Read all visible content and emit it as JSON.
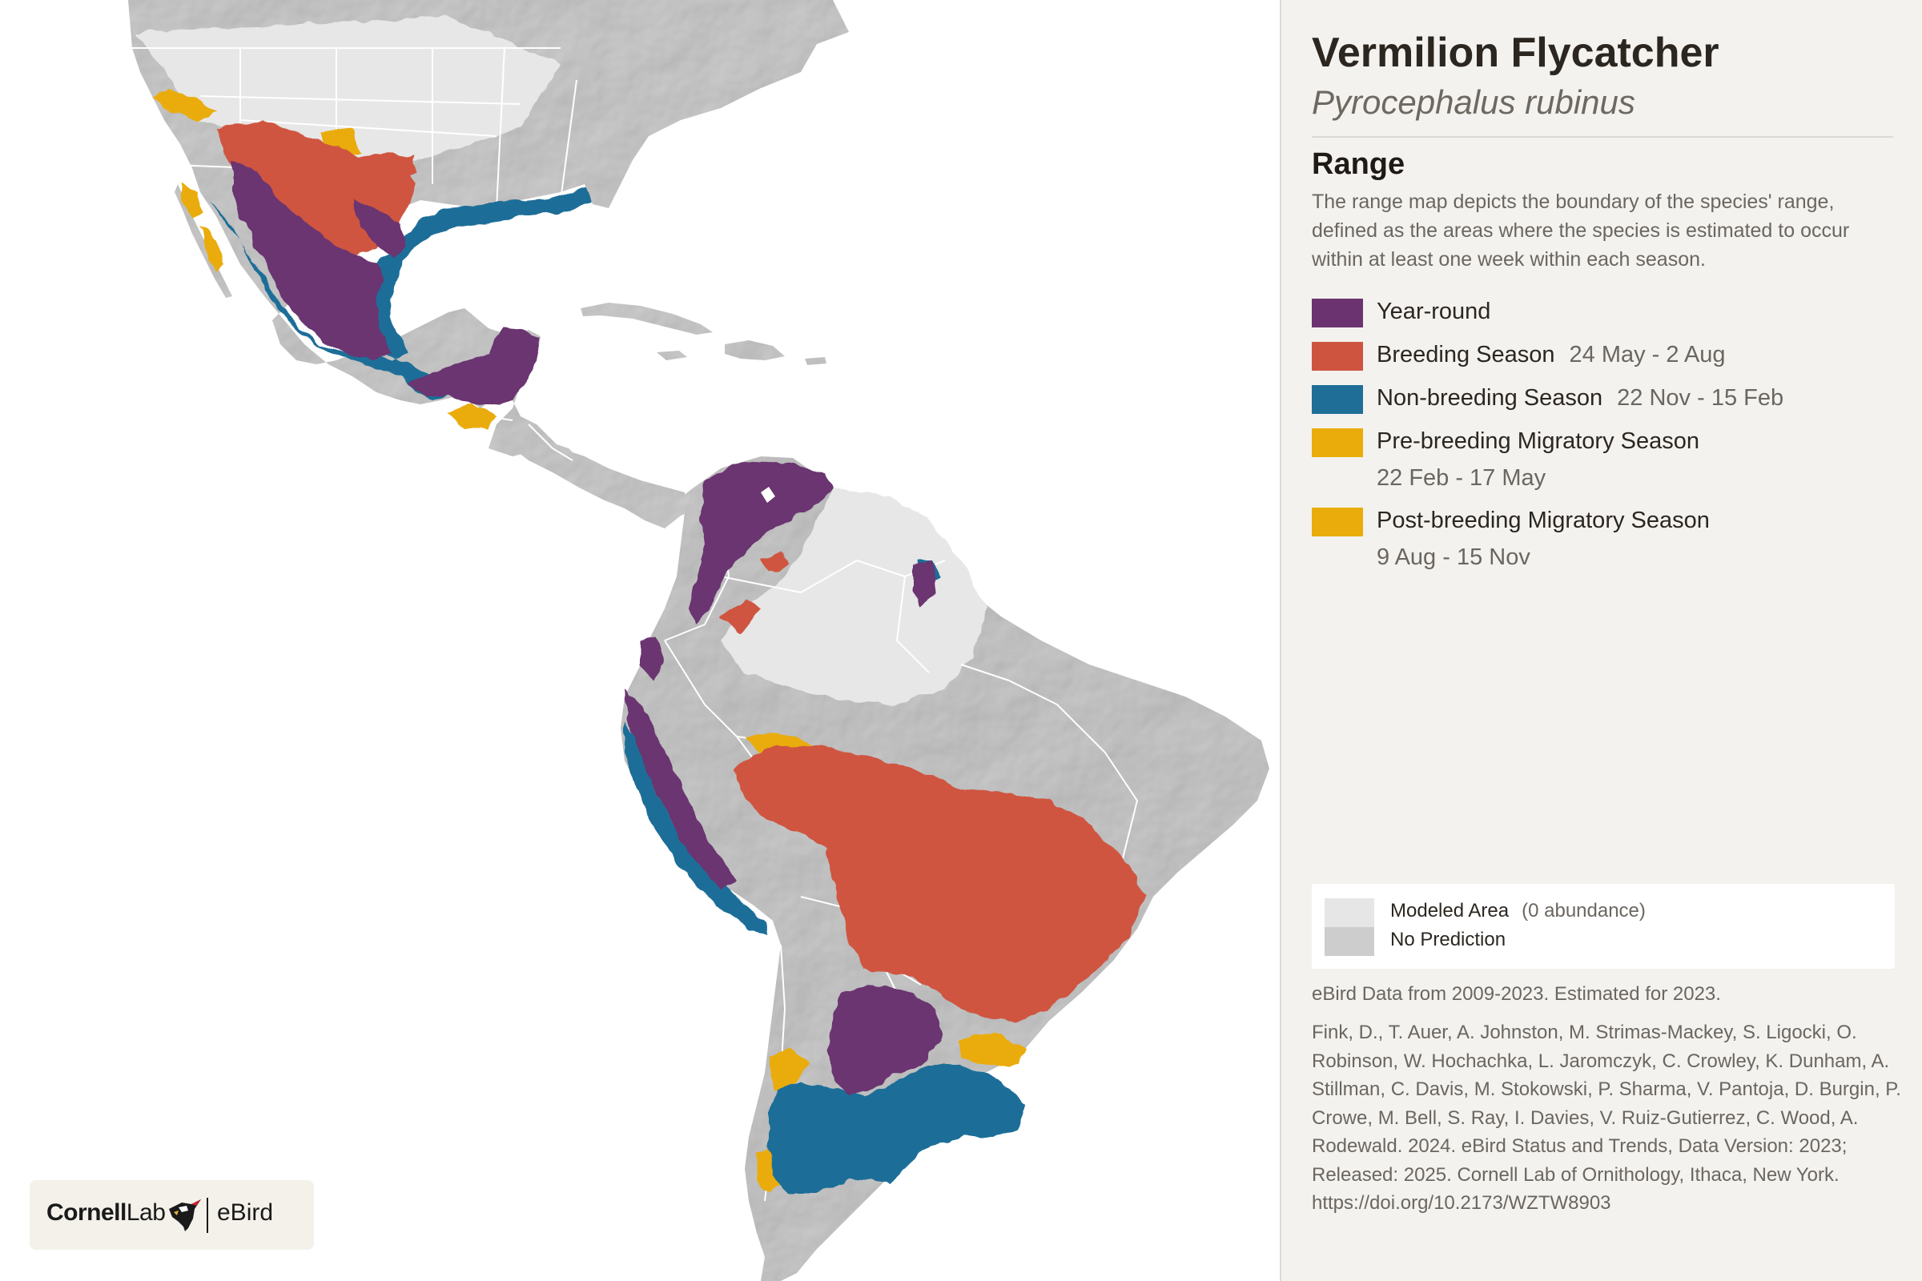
{
  "species": {
    "common_name": "Vermilion Flycatcher",
    "scientific_name": "Pyrocephalus rubinus"
  },
  "range": {
    "heading": "Range",
    "description": "The range map depicts the boundary of the species' range, defined as the areas where the species is estimated to occur within at least one week within each season."
  },
  "legend": {
    "year_round": {
      "label": "Year-round",
      "color": "#6b3470"
    },
    "breeding": {
      "label": "Breeding Season",
      "dates": "24 May - 2 Aug",
      "color": "#cf5440"
    },
    "nonbreeding": {
      "label": "Non-breeding Season",
      "dates": "22 Nov - 15 Feb",
      "color": "#1f6e98"
    },
    "prebreeding": {
      "label": "Pre-breeding Migratory Season",
      "dates": "22 Feb - 17 May",
      "color": "#eaac0a"
    },
    "postbreeding": {
      "label": "Post-breeding Migratory Season",
      "dates": "9 Aug - 15 Nov",
      "color": "#eaac0a"
    }
  },
  "model_legend": {
    "modeled_label": "Modeled Area",
    "modeled_note": "(0 abundance)",
    "modeled_color": "#e6e6e6",
    "no_prediction_label": "No Prediction",
    "no_prediction_color": "#cdcdcd"
  },
  "data_note": "eBird Data from 2009-2023. Estimated for 2023.",
  "citation": "Fink, D., T. Auer, A. Johnston, M. Strimas-Mackey, S. Ligocki, O. Robinson, W. Hochachka, L. Jaromczyk, C. Crowley, K. Dunham, A. Stillman, C. Davis, M. Stokowski, P. Sharma, V. Pantoja, D. Burgin, P. Crowe, M. Bell, S. Ray, I. Davies, V. Ruiz-Gutierrez, C. Wood, A. Rodewald. 2024. eBird Status and Trends, Data Version: 2023; Released: 2025. Cornell Lab of Ornithology, Ithaca, New York. https://doi.org/10.2173/WZTW8903",
  "logo": {
    "cornell": "Cornell",
    "lab": "Lab",
    "ebird": "eBird"
  },
  "map": {
    "ocean_color": "#ffffff",
    "land_color": "#d2d2d2",
    "modeled_color": "#e6e6e6",
    "border_color": "#ffffff"
  }
}
